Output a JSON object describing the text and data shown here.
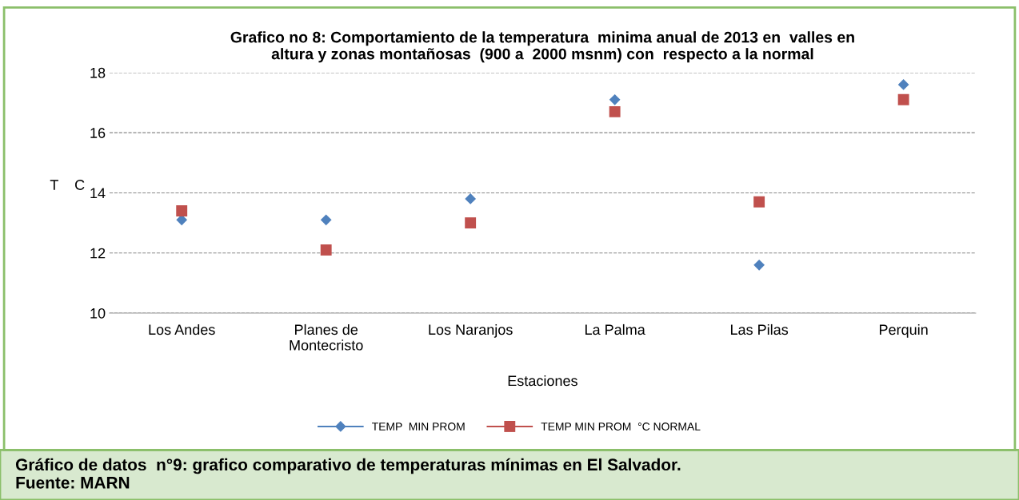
{
  "chart_data": {
    "type": "scatter",
    "title": "Grafico no 8: Comportamiento de la temperatura  minima anual de 2013 en  valles en\naltura y zonas montañosas  (900 a  2000 msnm) con  respecto a la normal",
    "xlabel": "Estaciones",
    "ylabel": "T    C",
    "categories": [
      "Los Andes",
      "Planes de\nMontecristo",
      "Los Naranjos",
      "La Palma",
      "Las Pilas",
      "Perquin"
    ],
    "series": [
      {
        "name": "TEMP  MIN PROM",
        "color": "#4f81bd",
        "marker": "diamond",
        "values": [
          13.1,
          13.1,
          13.8,
          17.1,
          11.6,
          17.6
        ]
      },
      {
        "name": "TEMP MIN PROM  °C NORMAL",
        "color": "#c0504d",
        "marker": "square",
        "values": [
          13.4,
          12.1,
          13.0,
          16.7,
          13.7,
          17.1
        ]
      }
    ],
    "ylim": [
      10,
      18
    ],
    "yticks": [
      10,
      12,
      14,
      16,
      18
    ],
    "grid": "y",
    "legend": "bottom",
    "annotations": [
      "Gráfico de datos  n°9: grafico comparativo de temperaturas mínimas en El Salvador.\nFuente: MARN"
    ]
  }
}
